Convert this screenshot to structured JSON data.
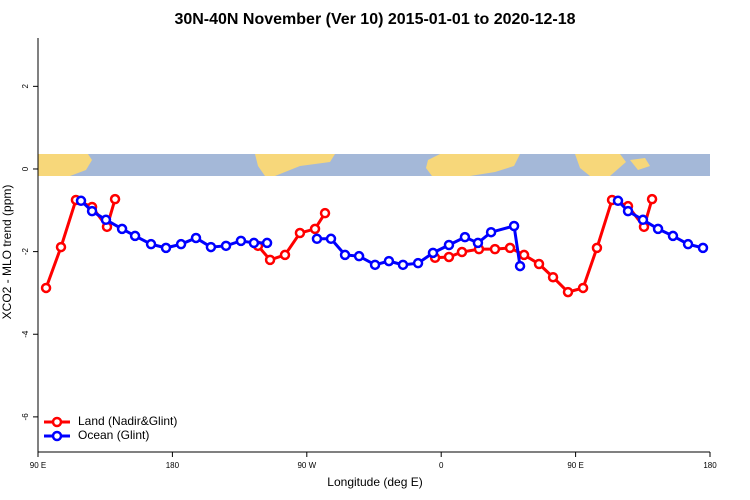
{
  "chart_data": {
    "type": "line",
    "title": "30N-40N November (Ver 10)   2015-01-01 to 2020-12-18",
    "x_label": "Longitude (deg E)",
    "y_label": "XCO2 - MLO trend (ppm)",
    "xlim": [
      90,
      540
    ],
    "xticks": [
      {
        "value": 90,
        "label": "90 E"
      },
      {
        "value": 180,
        "label": "180"
      },
      {
        "value": 270,
        "label": "90 W"
      },
      {
        "value": 360,
        "label": "0"
      },
      {
        "value": 450,
        "label": "90 E"
      },
      {
        "value": 540,
        "label": "180"
      }
    ],
    "ylim": [
      -6.85,
      3.17
    ],
    "yticks": [
      -6,
      -4,
      -2,
      0,
      2
    ],
    "legend": "bottomleft",
    "series": [
      {
        "name": "Land (Nadir&Glint)",
        "color": "#ff0000",
        "x": [
          95.4,
          105.4,
          115.4,
          126.2,
          136.2,
          141.6,
          200,
          237.3,
          245.4,
          255.4,
          265.4,
          275.5,
          282.2,
          350,
          355.9,
          365.2,
          373.9,
          385.3,
          396.0,
          406.1,
          415.5,
          425.5,
          434.9,
          444.9,
          455.0,
          464.3,
          474.4,
          485.1,
          495.8,
          501.2
        ],
        "values": [
          -2.88,
          -1.89,
          -0.75,
          -0.92,
          -1.4,
          -0.73,
          null,
          -1.86,
          -2.2,
          -2.08,
          -1.55,
          -1.45,
          -1.07,
          null,
          -2.15,
          -2.13,
          -2.01,
          -1.94,
          -1.94,
          -1.91,
          -2.08,
          -2.3,
          -2.62,
          -2.98,
          -2.88,
          -1.91,
          -0.75,
          -0.9,
          -1.4,
          -0.73
        ]
      },
      {
        "name": "Ocean (Glint)",
        "color": "#0000ff",
        "x": [
          118.8,
          126.2,
          135.5,
          146.3,
          155.0,
          165.7,
          175.7,
          185.8,
          195.8,
          205.8,
          215.9,
          225.9,
          234.6,
          243.4,
          250,
          276.8,
          286.2,
          295.6,
          305.0,
          315.7,
          325.0,
          334.4,
          344.5,
          354.5,
          365.2,
          375.9,
          384.6,
          393.4,
          408.8,
          412.8,
          440,
          478.4,
          485.1,
          495.1,
          505.2,
          515.2,
          525.3,
          535.3
        ],
        "values": [
          -0.77,
          -1.02,
          -1.23,
          -1.45,
          -1.62,
          -1.82,
          -1.91,
          -1.82,
          -1.67,
          -1.89,
          -1.86,
          -1.74,
          -1.79,
          -1.79,
          null,
          -1.69,
          -1.69,
          -2.08,
          -2.11,
          -2.32,
          -2.23,
          -2.32,
          -2.28,
          -2.03,
          -1.84,
          -1.65,
          -1.79,
          -1.53,
          -1.38,
          -2.35,
          null,
          -0.77,
          -1.02,
          -1.23,
          -1.45,
          -1.62,
          -1.82,
          -1.91
        ]
      }
    ]
  }
}
